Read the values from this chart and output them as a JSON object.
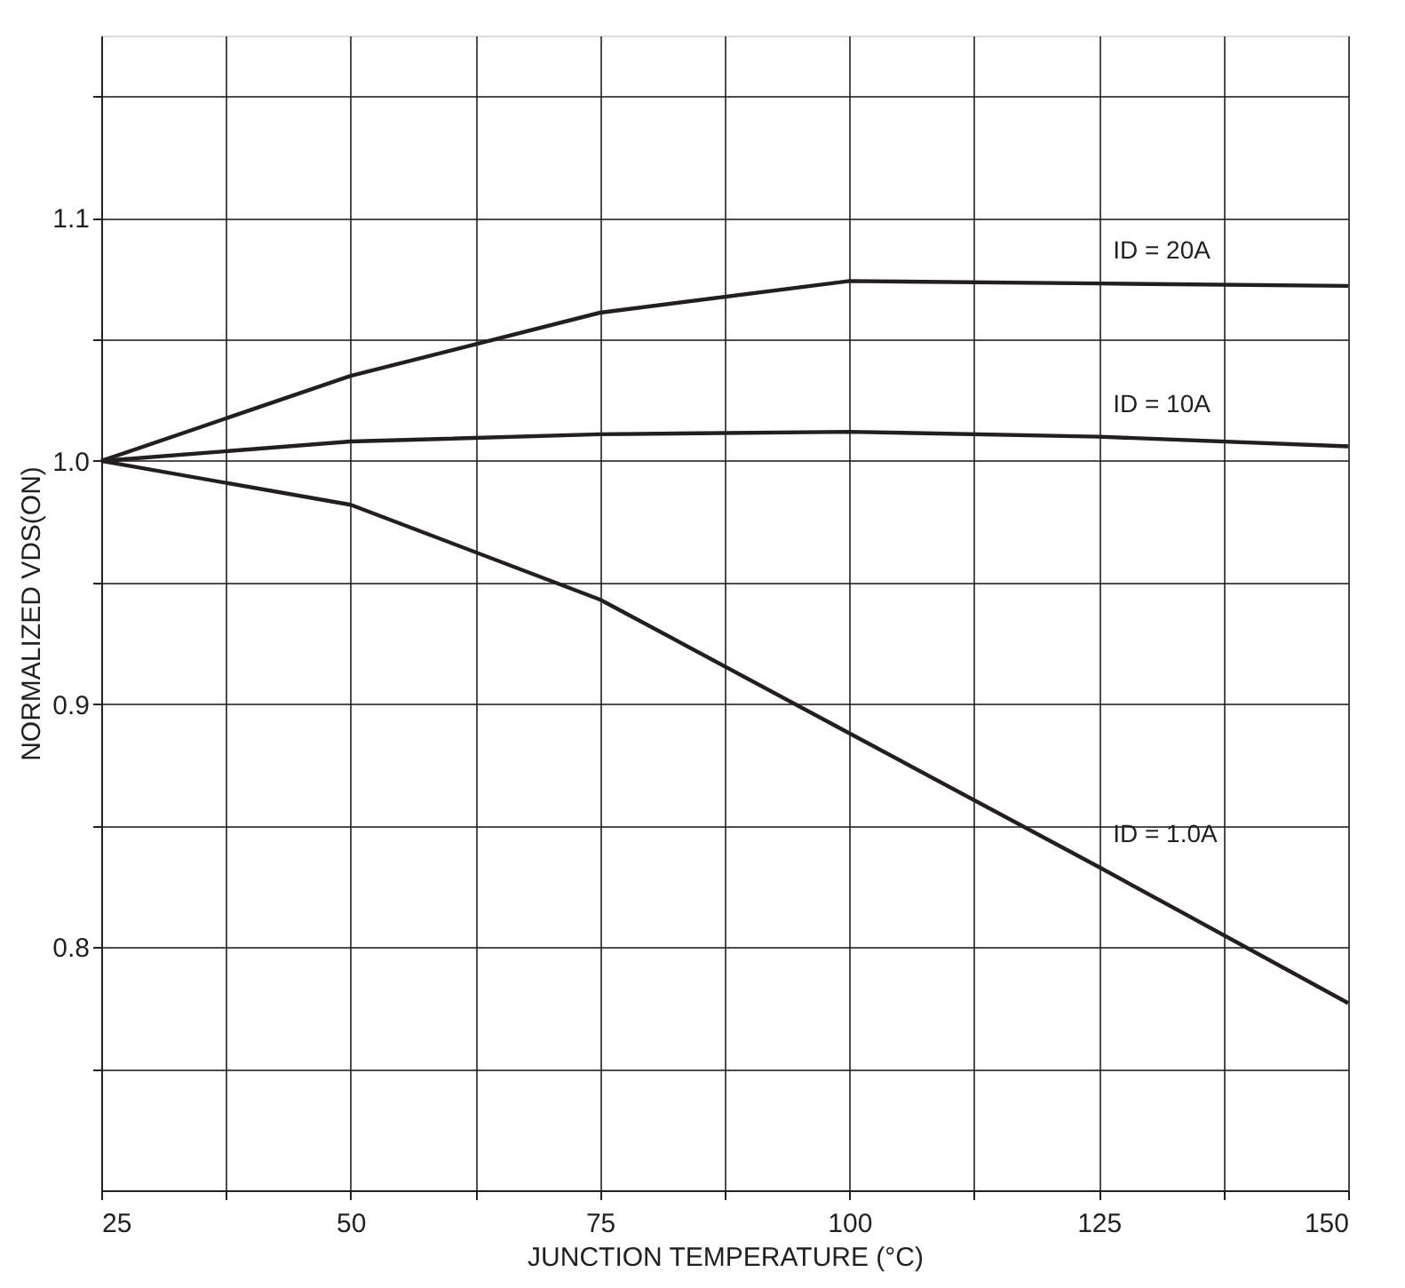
{
  "chart_data": {
    "type": "line",
    "xlabel": "JUNCTION TEMPERATURE (°C)",
    "ylabel": "NORMALIZED VDS(ON)",
    "series": [
      {
        "name": "ID = 20A",
        "color": "#231f20",
        "x": [
          25,
          50,
          75,
          100,
          125,
          150
        ],
        "values": [
          1.0,
          1.035,
          1.061,
          1.074,
          1.073,
          1.072
        ]
      },
      {
        "name": "ID = 10A",
        "color": "#231f20",
        "x": [
          25,
          50,
          75,
          100,
          125,
          150
        ],
        "values": [
          1.0,
          1.008,
          1.011,
          1.012,
          1.01,
          1.006
        ]
      },
      {
        "name": "ID = 1.0A",
        "color": "#231f20",
        "x": [
          25,
          50,
          75,
          100,
          125,
          150
        ],
        "values": [
          1.0,
          0.982,
          0.943,
          0.888,
          0.833,
          0.777
        ]
      }
    ],
    "xlim": [
      25,
      150
    ],
    "xticks": [
      25,
      {
        "value": 37.5,
        "label": null
      },
      50,
      {
        "value": 62.5,
        "label": null
      },
      75,
      {
        "value": 87.5,
        "label": null
      },
      100,
      {
        "value": 112.5,
        "label": null
      },
      125,
      {
        "value": 137.5,
        "label": null
      },
      150
    ],
    "ylim": [
      0.7,
      1.175
    ],
    "yticks": [
      {
        "value": 0.75,
        "label": null
      },
      {
        "value": 0.8,
        "label": "0.8"
      },
      {
        "value": 0.85,
        "label": null
      },
      {
        "value": 0.9,
        "label": "0.9"
      },
      {
        "value": 0.95,
        "label": null
      },
      {
        "value": 1.0,
        "label": "1.0"
      },
      {
        "value": 1.05,
        "label": null
      },
      {
        "value": 1.1,
        "label": "1.1"
      },
      {
        "value": 1.15,
        "label": null
      }
    ],
    "grid": true,
    "marker": "none",
    "line_style": "solid"
  }
}
